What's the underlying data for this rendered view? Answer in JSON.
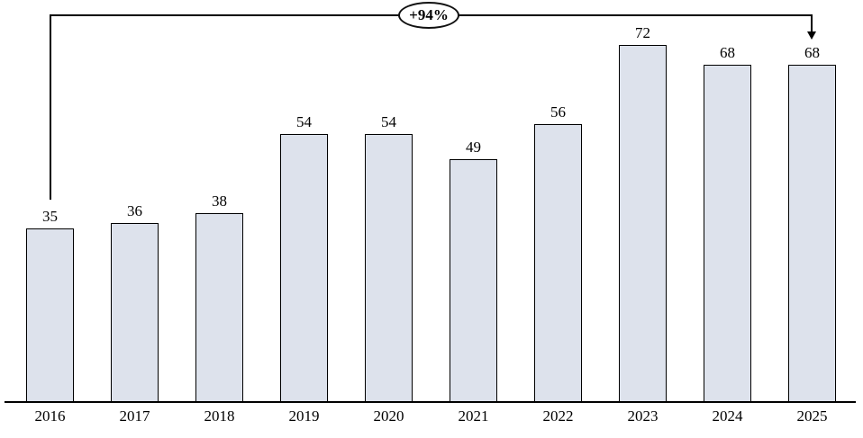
{
  "chart_data": {
    "type": "bar",
    "categories": [
      "2016",
      "2017",
      "2018",
      "2019",
      "2020",
      "2021",
      "2022",
      "2023",
      "2024",
      "2025"
    ],
    "values": [
      35,
      36,
      38,
      54,
      54,
      49,
      56,
      72,
      68,
      68
    ],
    "title": "",
    "xlabel": "",
    "ylabel": "",
    "ylim": [
      0,
      80
    ],
    "grid": false,
    "legend": false,
    "bar_fill": "#dde2ec",
    "bar_border": "#000000",
    "value_labels_shown": true,
    "annotation": {
      "label": "+94%",
      "from_category": "2016",
      "to_category": "2025",
      "shape": "ellipse-on-bracket-with-down-arrow"
    }
  }
}
